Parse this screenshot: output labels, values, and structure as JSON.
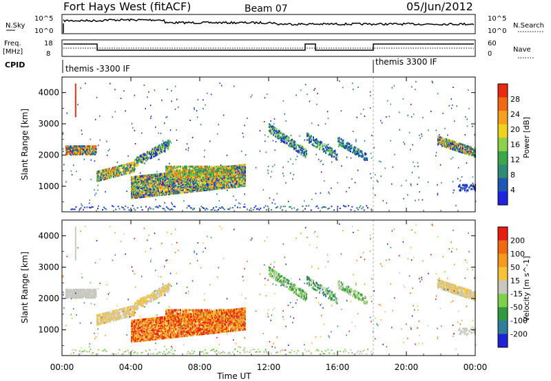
{
  "header": {
    "title": "Fort Hays West (fitACF)",
    "beam": "Beam 07",
    "date": "05/Jun/2012"
  },
  "noise_panel": {
    "left_label": "N.Sky",
    "right_label": "N.Search",
    "left_ticks": [
      "10^5",
      "10^0"
    ],
    "right_ticks": [
      "10^5",
      "10^0"
    ]
  },
  "freq_panel": {
    "left_label_1": "Freq.",
    "left_label_2": "[MHz]",
    "right_label": "Nave",
    "left_ticks": [
      "18",
      "8"
    ],
    "right_ticks": [
      "60",
      "0"
    ]
  },
  "cpid_panel": {
    "label": "CPID",
    "segments": [
      "themis -3300 IF",
      "themis 3300 IF"
    ]
  },
  "colors": {
    "power_scale": [
      "#1f23e0",
      "#1f58b4",
      "#2e8b74",
      "#3aa84a",
      "#8fd24a",
      "#f0d21e",
      "#f5a01e",
      "#f06a14",
      "#e82a10"
    ],
    "velocity_scale": [
      "#1f23d8",
      "#2e7d9a",
      "#2f9a3f",
      "#7ed04a",
      "#c8c8c0",
      "#f5c23c",
      "#f59a1e",
      "#f06a14",
      "#e81c10"
    ]
  },
  "chart_data": [
    {
      "type": "heatmap",
      "name": "power",
      "ylabel": "Slant Range [km]",
      "xlabel": "Time UT",
      "x_ticks": [
        "00:00",
        "04:00",
        "08:00",
        "12:00",
        "16:00",
        "20:00",
        "00:00"
      ],
      "y_ticks": [
        "1000",
        "2000",
        "3000",
        "4000"
      ],
      "xlim_hours": [
        0,
        24
      ],
      "ylim_km": [
        180,
        4500
      ],
      "colorbar_label": "Power [dB]",
      "colorbar_ticks": [
        "28",
        "24",
        "20",
        "16",
        "12",
        "8",
        "4"
      ]
    },
    {
      "type": "heatmap",
      "name": "velocity",
      "ylabel": "Slant Range [km]",
      "xlabel": "Time UT",
      "x_ticks": [
        "00:00",
        "04:00",
        "08:00",
        "12:00",
        "16:00",
        "20:00",
        "00:00"
      ],
      "y_ticks": [
        "1000",
        "2000",
        "3000",
        "4000"
      ],
      "xlim_hours": [
        0,
        24
      ],
      "ylim_km": [
        180,
        4500
      ],
      "colorbar_label": "Velocity [m s^-1]",
      "colorbar_ticks": [
        "200",
        "100",
        "50",
        "15",
        "-15",
        "-50",
        "-100",
        "-200"
      ]
    }
  ]
}
